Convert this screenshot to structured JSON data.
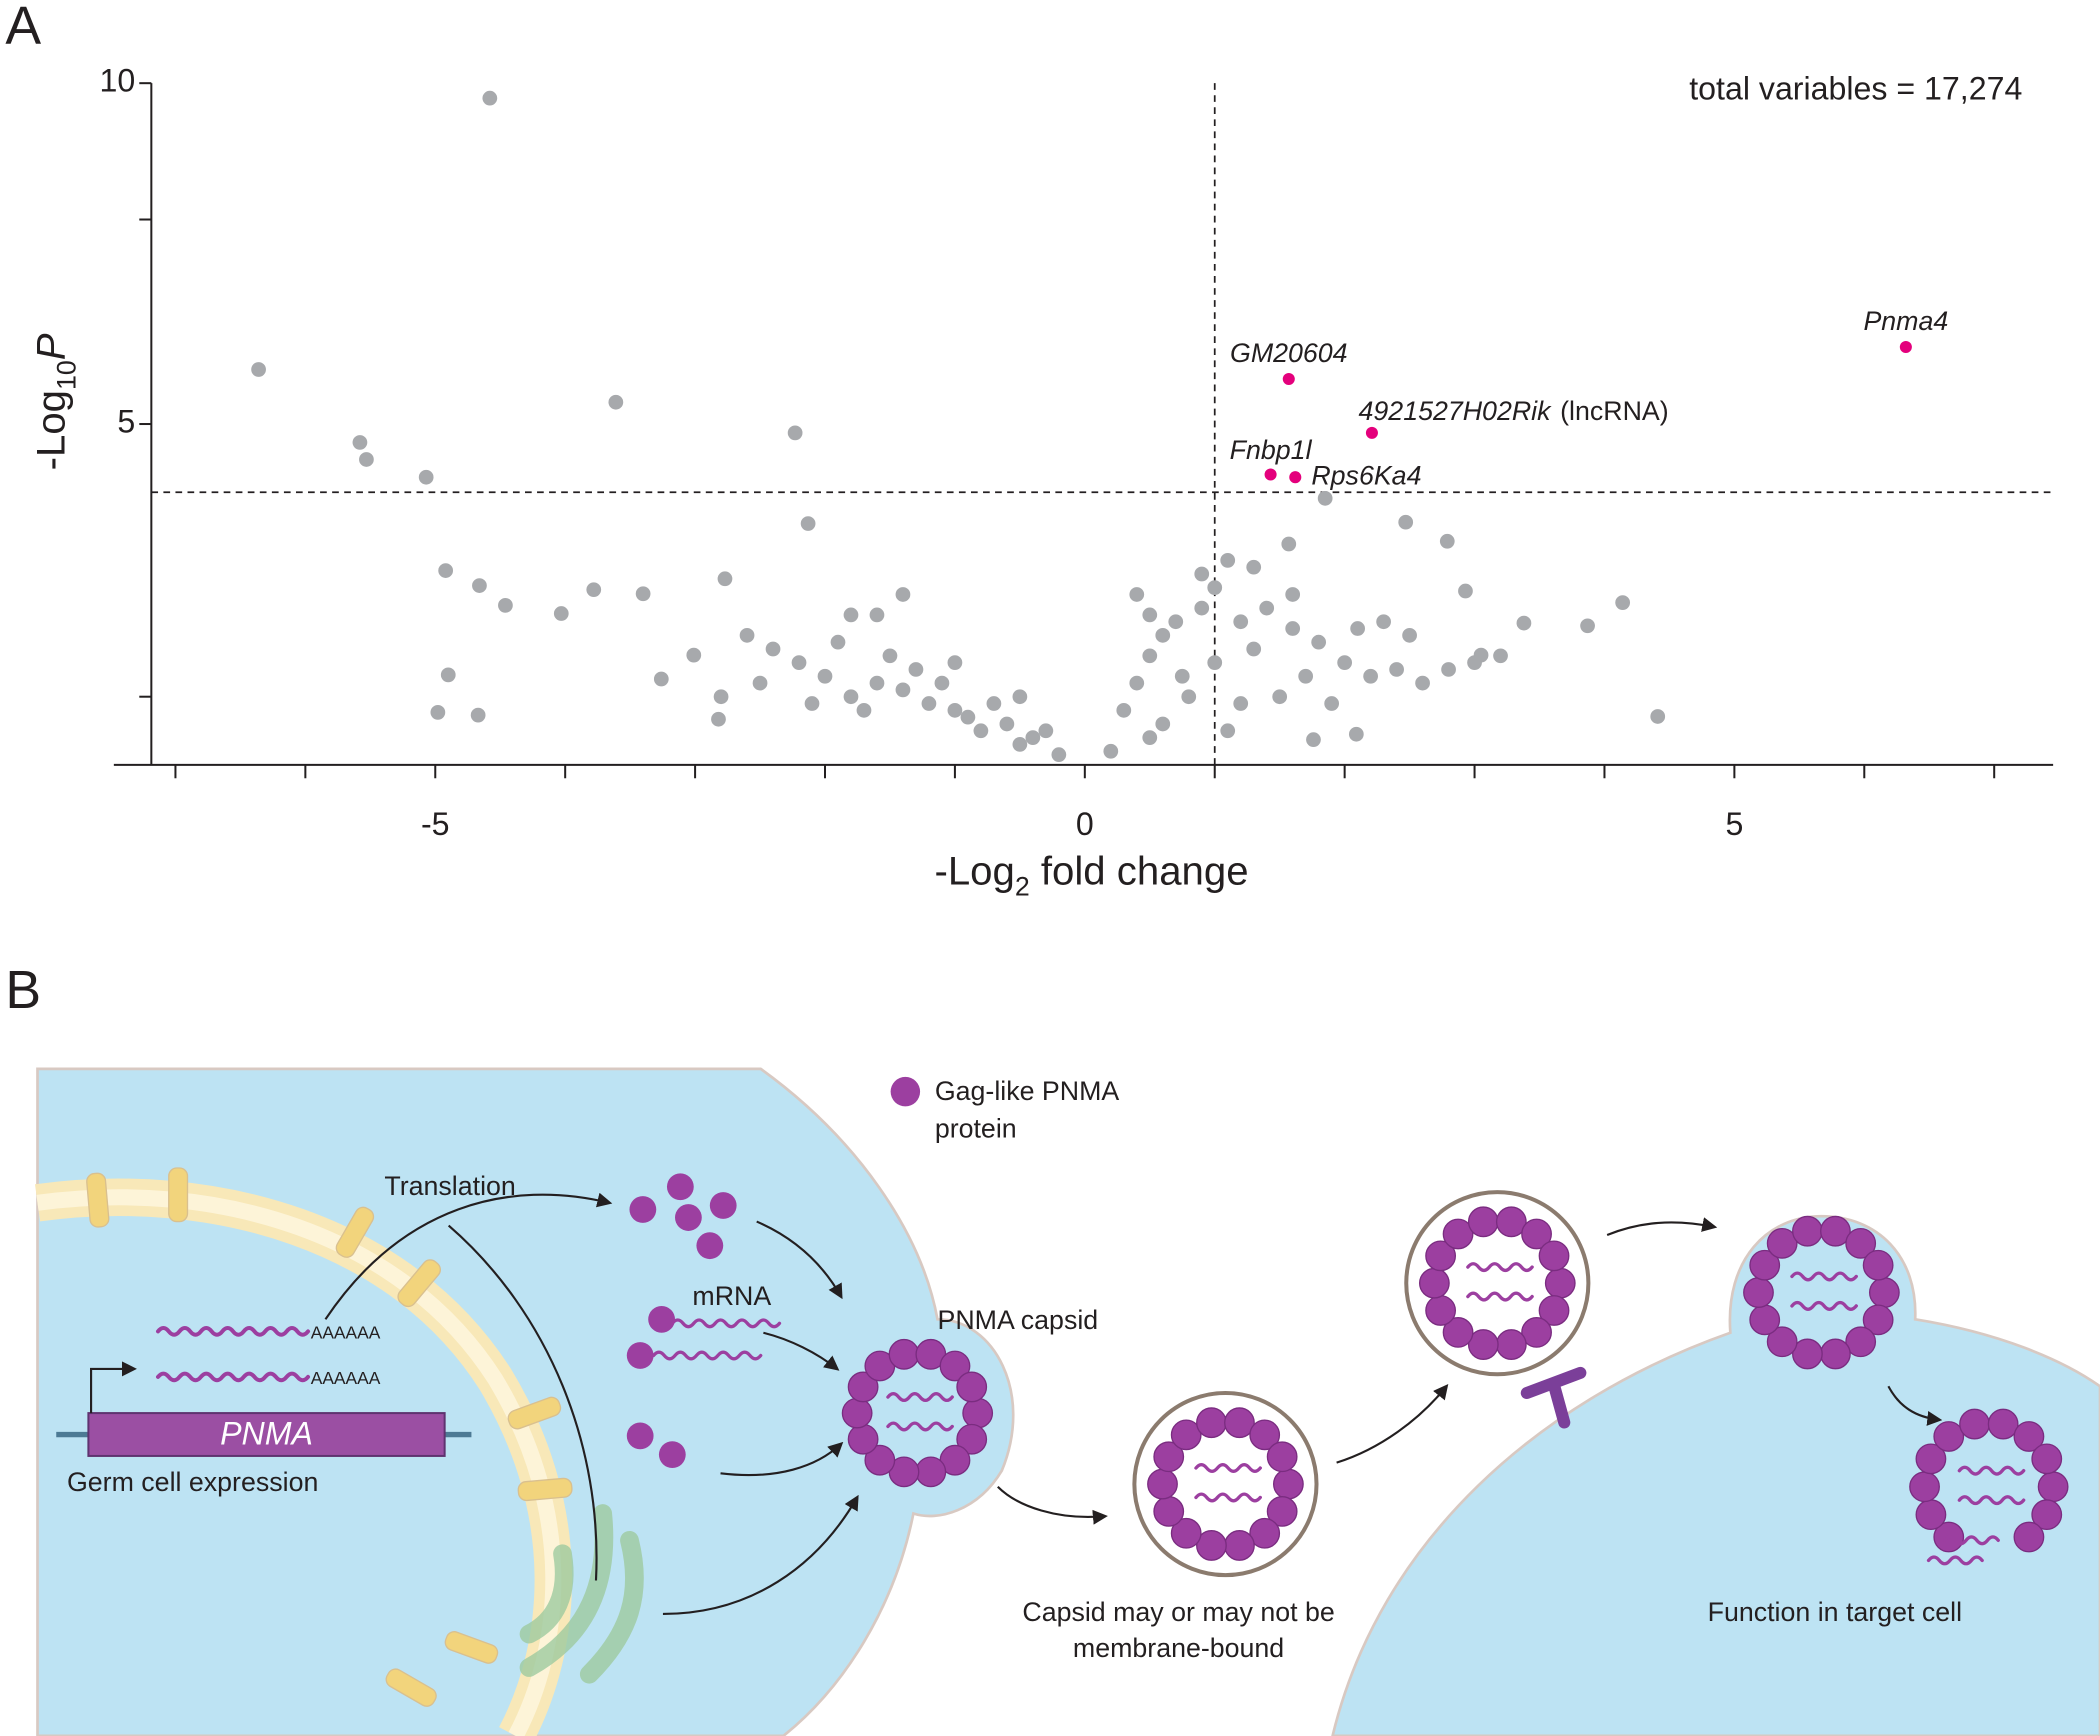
{
  "chart_data": {
    "type": "scatter",
    "panel": "A",
    "annotations": [
      "total variables = 17,274",
      "(lncRNA)"
    ],
    "xlabel": [
      "-Log",
      "2",
      " fold change"
    ],
    "ylabel": [
      "-Log",
      "10",
      "P"
    ],
    "xlim": [
      -7.5,
      7.5
    ],
    "xticks": [
      -5,
      0,
      5
    ],
    "xticks_minor": [
      -7,
      -6,
      -4,
      -3,
      -2,
      -1,
      1,
      2,
      3,
      4,
      6,
      7
    ],
    "ylim": [
      0,
      10
    ],
    "yticks": [
      5,
      10
    ],
    "yticks_minor": [
      1,
      8
    ],
    "hline": 4,
    "vline": 1,
    "series": [
      {
        "color": "#a7a9ac",
        "x": [
          -4.58,
          -6.36,
          -3.61,
          -5.58,
          -5.53,
          -5.07,
          -2.23,
          -2.13,
          -4.92,
          -4.66,
          -4.46,
          -4.03,
          -3.78,
          -3.4,
          -2.77,
          -3.01,
          -3.26,
          -4.9,
          -4.98,
          -4.67,
          -2.82,
          1.85,
          1.57,
          2.47,
          2.79,
          2.93,
          3.38,
          3.87,
          4.14,
          4.41,
          3.05,
          1.76,
          2.09,
          -0.2,
          -0.4,
          -0.6,
          -0.8,
          -1.0,
          -1.2,
          -1.4,
          -1.6,
          -1.8,
          -2.0,
          -2.2,
          -2.4,
          -2.6,
          -2.5,
          -1.5,
          -1.3,
          -1.9,
          -1.6,
          -1.8,
          -1.4,
          -0.9,
          -0.7,
          -1.1,
          -2.8,
          -1.0,
          -0.5,
          -0.3,
          -2.1,
          -1.7,
          -0.5,
          0.2,
          0.3,
          0.4,
          0.5,
          0.6,
          0.7,
          0.9,
          1.0,
          0.9,
          1.2,
          1.4,
          1.6,
          1.8,
          2.0,
          2.2,
          2.4,
          2.6,
          2.8,
          3.0,
          3.2,
          1.5,
          1.2,
          1.0,
          0.8,
          0.6,
          1.7,
          1.9,
          2.1,
          2.3,
          1.3,
          0.5,
          1.1,
          2.5,
          0.75,
          1.1,
          1.3,
          1.6,
          0.4,
          0.5
        ],
        "values": [
          9.78,
          5.8,
          5.32,
          4.73,
          4.48,
          4.22,
          4.87,
          3.54,
          2.85,
          2.63,
          2.34,
          2.22,
          2.57,
          2.51,
          2.73,
          1.61,
          1.26,
          1.32,
          0.77,
          0.73,
          0.67,
          3.91,
          3.24,
          3.56,
          3.28,
          2.55,
          2.08,
          2.04,
          2.38,
          0.71,
          1.61,
          0.37,
          0.45,
          0.15,
          0.4,
          0.6,
          0.5,
          0.8,
          0.9,
          1.1,
          1.2,
          1.0,
          1.3,
          1.5,
          1.7,
          1.9,
          1.2,
          1.6,
          1.4,
          1.8,
          2.2,
          2.2,
          2.5,
          0.7,
          0.9,
          1.2,
          1.0,
          1.5,
          0.3,
          0.5,
          0.9,
          0.8,
          1.0,
          0.2,
          0.8,
          1.2,
          1.6,
          1.9,
          2.1,
          2.3,
          2.6,
          2.8,
          2.1,
          2.3,
          2.0,
          1.8,
          1.5,
          1.3,
          1.4,
          1.2,
          1.4,
          1.5,
          1.6,
          1.0,
          0.9,
          1.5,
          1.0,
          0.6,
          1.3,
          0.9,
          2.0,
          2.1,
          1.7,
          0.4,
          0.5,
          1.9,
          1.3,
          3.0,
          2.9,
          2.5,
          2.5,
          2.2
        ]
      },
      {
        "color": "#e4007c",
        "x": [
          6.32,
          1.57,
          2.21,
          1.43,
          1.62
        ],
        "values": [
          6.13,
          5.66,
          4.87,
          4.26,
          4.22
        ],
        "labels": [
          "Pnma4",
          "GM20604",
          "4921527H02Rik",
          "Fnbp1l",
          "Rps6Ka4"
        ]
      }
    ]
  },
  "diagram": {
    "panel": "B",
    "legend": [
      "Gag-like PNMA",
      "protein"
    ],
    "translation": "Translation",
    "mrna": "mRNA",
    "polya": [
      "AAAAAA",
      "AAAAAA"
    ],
    "gene": "PNMA",
    "gene_caption": "Germ cell expression",
    "capsid": "PNMA capsid",
    "membrane_caption": [
      "Capsid may or may not be",
      "membrane-bound"
    ],
    "target_caption": "Function in target cell"
  }
}
